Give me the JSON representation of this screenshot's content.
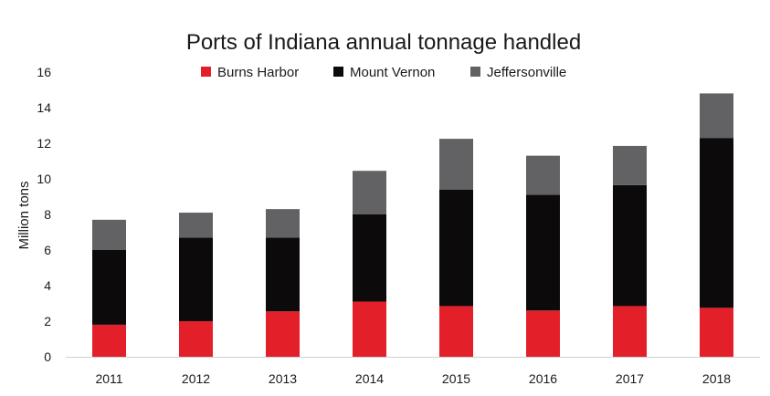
{
  "chart_data": {
    "type": "bar",
    "stacked": true,
    "title": "Ports of Indiana annual tonnage handled",
    "xlabel": "",
    "ylabel": "Million tons",
    "ylim": [
      0,
      16
    ],
    "yticks": [
      0,
      2,
      4,
      6,
      8,
      10,
      12,
      14,
      16
    ],
    "grid": false,
    "legend_position": "top-center",
    "categories": [
      "2011",
      "2012",
      "2013",
      "2014",
      "2015",
      "2016",
      "2017",
      "2018"
    ],
    "series": [
      {
        "name": "Burns Harbor",
        "color": "#e3202a",
        "values": [
          1.8,
          2.0,
          2.55,
          3.1,
          2.85,
          2.6,
          2.85,
          2.75
        ]
      },
      {
        "name": "Mount Vernon",
        "color": "#0c0a0b",
        "values": [
          4.2,
          4.7,
          4.15,
          4.9,
          6.55,
          6.5,
          6.8,
          9.55
        ]
      },
      {
        "name": "Jeffersonville",
        "color": "#626164",
        "values": [
          1.7,
          1.4,
          1.6,
          2.45,
          2.85,
          2.2,
          2.2,
          2.5
        ]
      }
    ]
  }
}
